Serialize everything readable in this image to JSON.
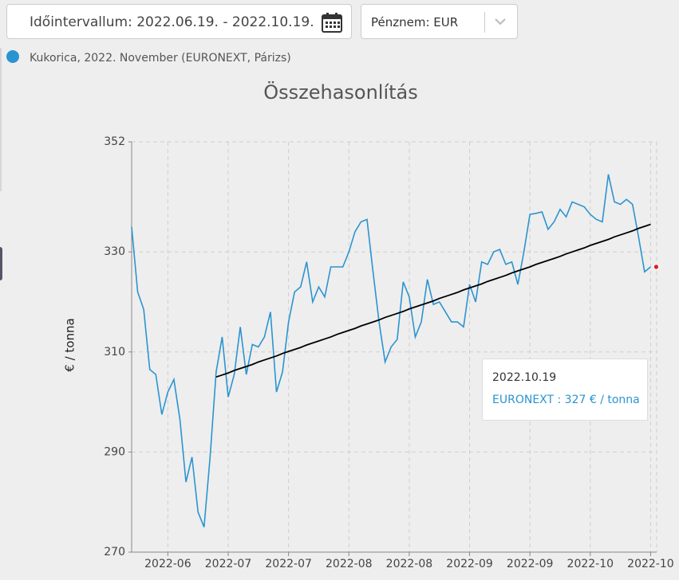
{
  "date_picker": {
    "label": "Időintervallum: 2022.06.19. - 2022.10.19."
  },
  "currency": {
    "label": "Pénznem: EUR"
  },
  "chart_data": {
    "type": "line",
    "title": "Összehasonlítás",
    "ylabel": "€ / tonna",
    "categories": [
      null,
      null,
      null,
      null,
      null,
      null,
      "2022-06",
      null,
      null,
      null,
      null,
      null,
      null,
      null,
      null,
      null,
      "2022-07",
      null,
      null,
      null,
      null,
      null,
      null,
      null,
      null,
      null,
      "2022-07",
      null,
      null,
      null,
      null,
      null,
      null,
      null,
      null,
      null,
      "2022-08",
      null,
      null,
      null,
      null,
      null,
      null,
      null,
      null,
      null,
      "2022-08",
      null,
      null,
      null,
      null,
      null,
      null,
      null,
      null,
      null,
      "2022-09",
      null,
      null,
      null,
      null,
      null,
      null,
      null,
      null,
      null,
      "2022-09",
      null,
      null,
      null,
      null,
      null,
      null,
      null,
      null,
      null,
      "2022-10",
      null,
      null,
      null,
      null,
      null,
      null,
      null,
      null,
      null,
      "2022-10"
    ],
    "series": [
      {
        "name": "Kukorica, 2022. November (EURONEXT, Párizs)",
        "color": "#2b94d0",
        "values": [
          335,
          322,
          318.5,
          306.5,
          305.5,
          297.5,
          302,
          304.5,
          296.5,
          284,
          289,
          278,
          275,
          289,
          306,
          313,
          301,
          305.5,
          315,
          305.5,
          311.5,
          311,
          313,
          318,
          302,
          306,
          316,
          322,
          323,
          328,
          320,
          323,
          321,
          327,
          327,
          327,
          330,
          334,
          336,
          336.5,
          326,
          316,
          308,
          311,
          312.5,
          324,
          321,
          313,
          316,
          324.5,
          319.5,
          320,
          318,
          316,
          316,
          315,
          323.5,
          320,
          328,
          327.5,
          330,
          330.5,
          327.5,
          328,
          323.5,
          330,
          337.5,
          337.7,
          338,
          334.5,
          336,
          338.5,
          337,
          340,
          339.5,
          339,
          337.5,
          336.5,
          336,
          345.5,
          340,
          339.5,
          340.5,
          339.5,
          333,
          326,
          327
        ]
      }
    ],
    "trend": {
      "color": "#000000",
      "values": [
        null,
        null,
        null,
        null,
        null,
        null,
        null,
        null,
        null,
        null,
        null,
        null,
        null,
        null,
        305.0,
        305.4,
        305.8,
        306.3,
        306.7,
        307.1,
        307.5,
        308.0,
        308.4,
        308.8,
        309.2,
        309.7,
        310.1,
        310.5,
        310.9,
        311.4,
        311.8,
        312.2,
        312.6,
        313.0,
        313.5,
        313.9,
        314.3,
        314.7,
        315.2,
        315.6,
        316.0,
        316.4,
        316.9,
        317.3,
        317.7,
        318.1,
        318.6,
        319.0,
        319.4,
        319.8,
        320.2,
        320.7,
        321.1,
        321.5,
        321.9,
        322.4,
        322.8,
        323.2,
        323.6,
        324.1,
        324.5,
        324.9,
        325.3,
        325.8,
        326.2,
        326.6,
        327.0,
        327.5,
        327.9,
        328.3,
        328.7,
        329.1,
        329.6,
        330.0,
        330.4,
        330.8,
        331.3,
        331.7,
        332.1,
        332.5,
        333.0,
        333.4,
        333.8,
        334.2,
        334.7,
        335.1,
        335.5
      ]
    },
    "ylim": [
      270,
      352
    ],
    "yticks": [
      270,
      290,
      310,
      330,
      352
    ],
    "grid": true,
    "tooltip": {
      "title": "2022.10.19",
      "text": "EURONEXT : 327 € / tonna",
      "marker_color": "#e02020"
    }
  }
}
